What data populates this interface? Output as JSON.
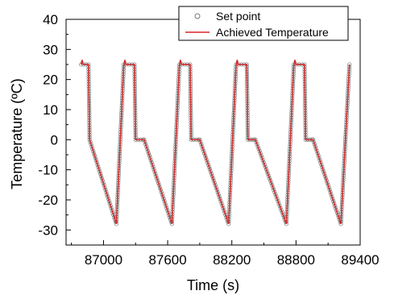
{
  "chart_data": {
    "type": "line",
    "xlabel": "Time (s)",
    "ylabel": "Temperature (ºC)",
    "xlim": [
      86650,
      89400
    ],
    "ylim": [
      -35,
      40
    ],
    "x_ticks": [
      87000,
      87600,
      88200,
      88800,
      89400
    ],
    "y_ticks": [
      -30,
      -20,
      -10,
      0,
      10,
      20,
      30,
      40
    ],
    "grid": false,
    "legend_position": "top-right",
    "series": [
      {
        "name": "Set point",
        "marker": "open-circle",
        "color": "#777777",
        "x": [
          86790,
          86860,
          86870,
          87120,
          87190,
          87290,
          87300,
          87370,
          87380,
          87640,
          87710,
          87810,
          87820,
          87890,
          87900,
          88170,
          88240,
          88340,
          88350,
          88410,
          88420,
          88710,
          88780,
          88880,
          88890,
          88950,
          88960,
          89220,
          89300
        ],
        "y": [
          25,
          25,
          0,
          -28,
          25,
          25,
          0,
          0,
          0,
          -28,
          25,
          25,
          0,
          0,
          0,
          -28,
          25,
          25,
          0,
          0,
          0,
          -28,
          25,
          25,
          0,
          0,
          0,
          -28,
          25
        ]
      },
      {
        "name": "Achieved Temperature",
        "color": "#d62728",
        "x": [
          86790,
          86800,
          86810,
          86860,
          86870,
          87120,
          87190,
          87200,
          87210,
          87290,
          87300,
          87370,
          87380,
          87640,
          87710,
          87720,
          87730,
          87810,
          87820,
          87890,
          87900,
          88170,
          88240,
          88250,
          88260,
          88340,
          88350,
          88410,
          88420,
          88710,
          88780,
          88790,
          88800,
          88880,
          88890,
          88950,
          88960,
          89220,
          89300
        ],
        "y": [
          25,
          26.5,
          25,
          25,
          0,
          -28,
          25,
          26.5,
          25,
          25,
          0,
          0,
          0,
          -28,
          25,
          26.5,
          25,
          25,
          0,
          0,
          0,
          -28,
          25,
          26.5,
          25,
          25,
          0,
          0,
          0,
          -28,
          25,
          26.5,
          25,
          25,
          0,
          0,
          0,
          -28,
          25
        ]
      }
    ]
  }
}
